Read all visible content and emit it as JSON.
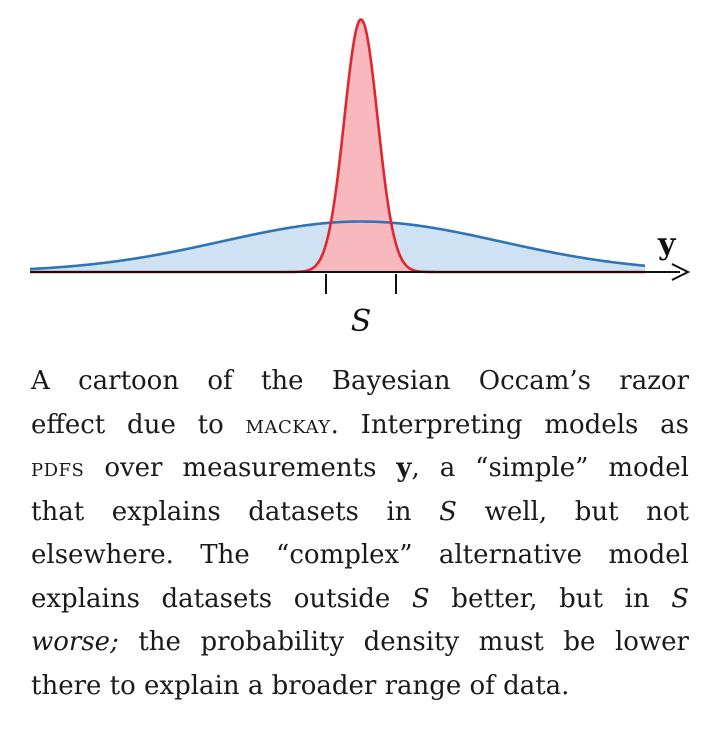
{
  "figure": {
    "axis_label": "y",
    "region_label": "S",
    "colors": {
      "broad_stroke": "#2f74b5",
      "broad_fill": "#cfe2f3",
      "narrow_stroke": "#e0262e",
      "narrow_fill": "#f7b8be",
      "axis": "#111111"
    }
  },
  "chart_data": {
    "type": "area",
    "series": [
      {
        "curve": "broad",
        "mean": 0,
        "std": 1.0,
        "peak": 1.0
      },
      {
        "curve": "narrow",
        "mean": 0,
        "std": 0.12,
        "peak": 5.0
      }
    ],
    "region": [
      -0.4,
      0.4
    ]
  },
  "caption": {
    "l1": "A cartoon of the Bayesian Occam’s razor",
    "l2_a": "effect due to ",
    "l2_sc": "mackay",
    "l2_b": ". Interpreting models as",
    "l3_sc": "pdfs",
    "l3_a": " over measurements ",
    "l3_y": "y",
    "l3_b": ", a “simple” model",
    "l4_a": "that explains datasets in ",
    "l4_s": "S",
    "l4_b": " well, but not",
    "l5": "elsewhere. The “complex” alternative model",
    "l6_a": "explains datasets outside ",
    "l6_s": "S",
    "l6_b": " better, but in ",
    "l6_s2": "S",
    "l7_it": "worse;",
    "l7_b": " the probability density must be lower",
    "l8": "there to explain a broader range of data."
  }
}
